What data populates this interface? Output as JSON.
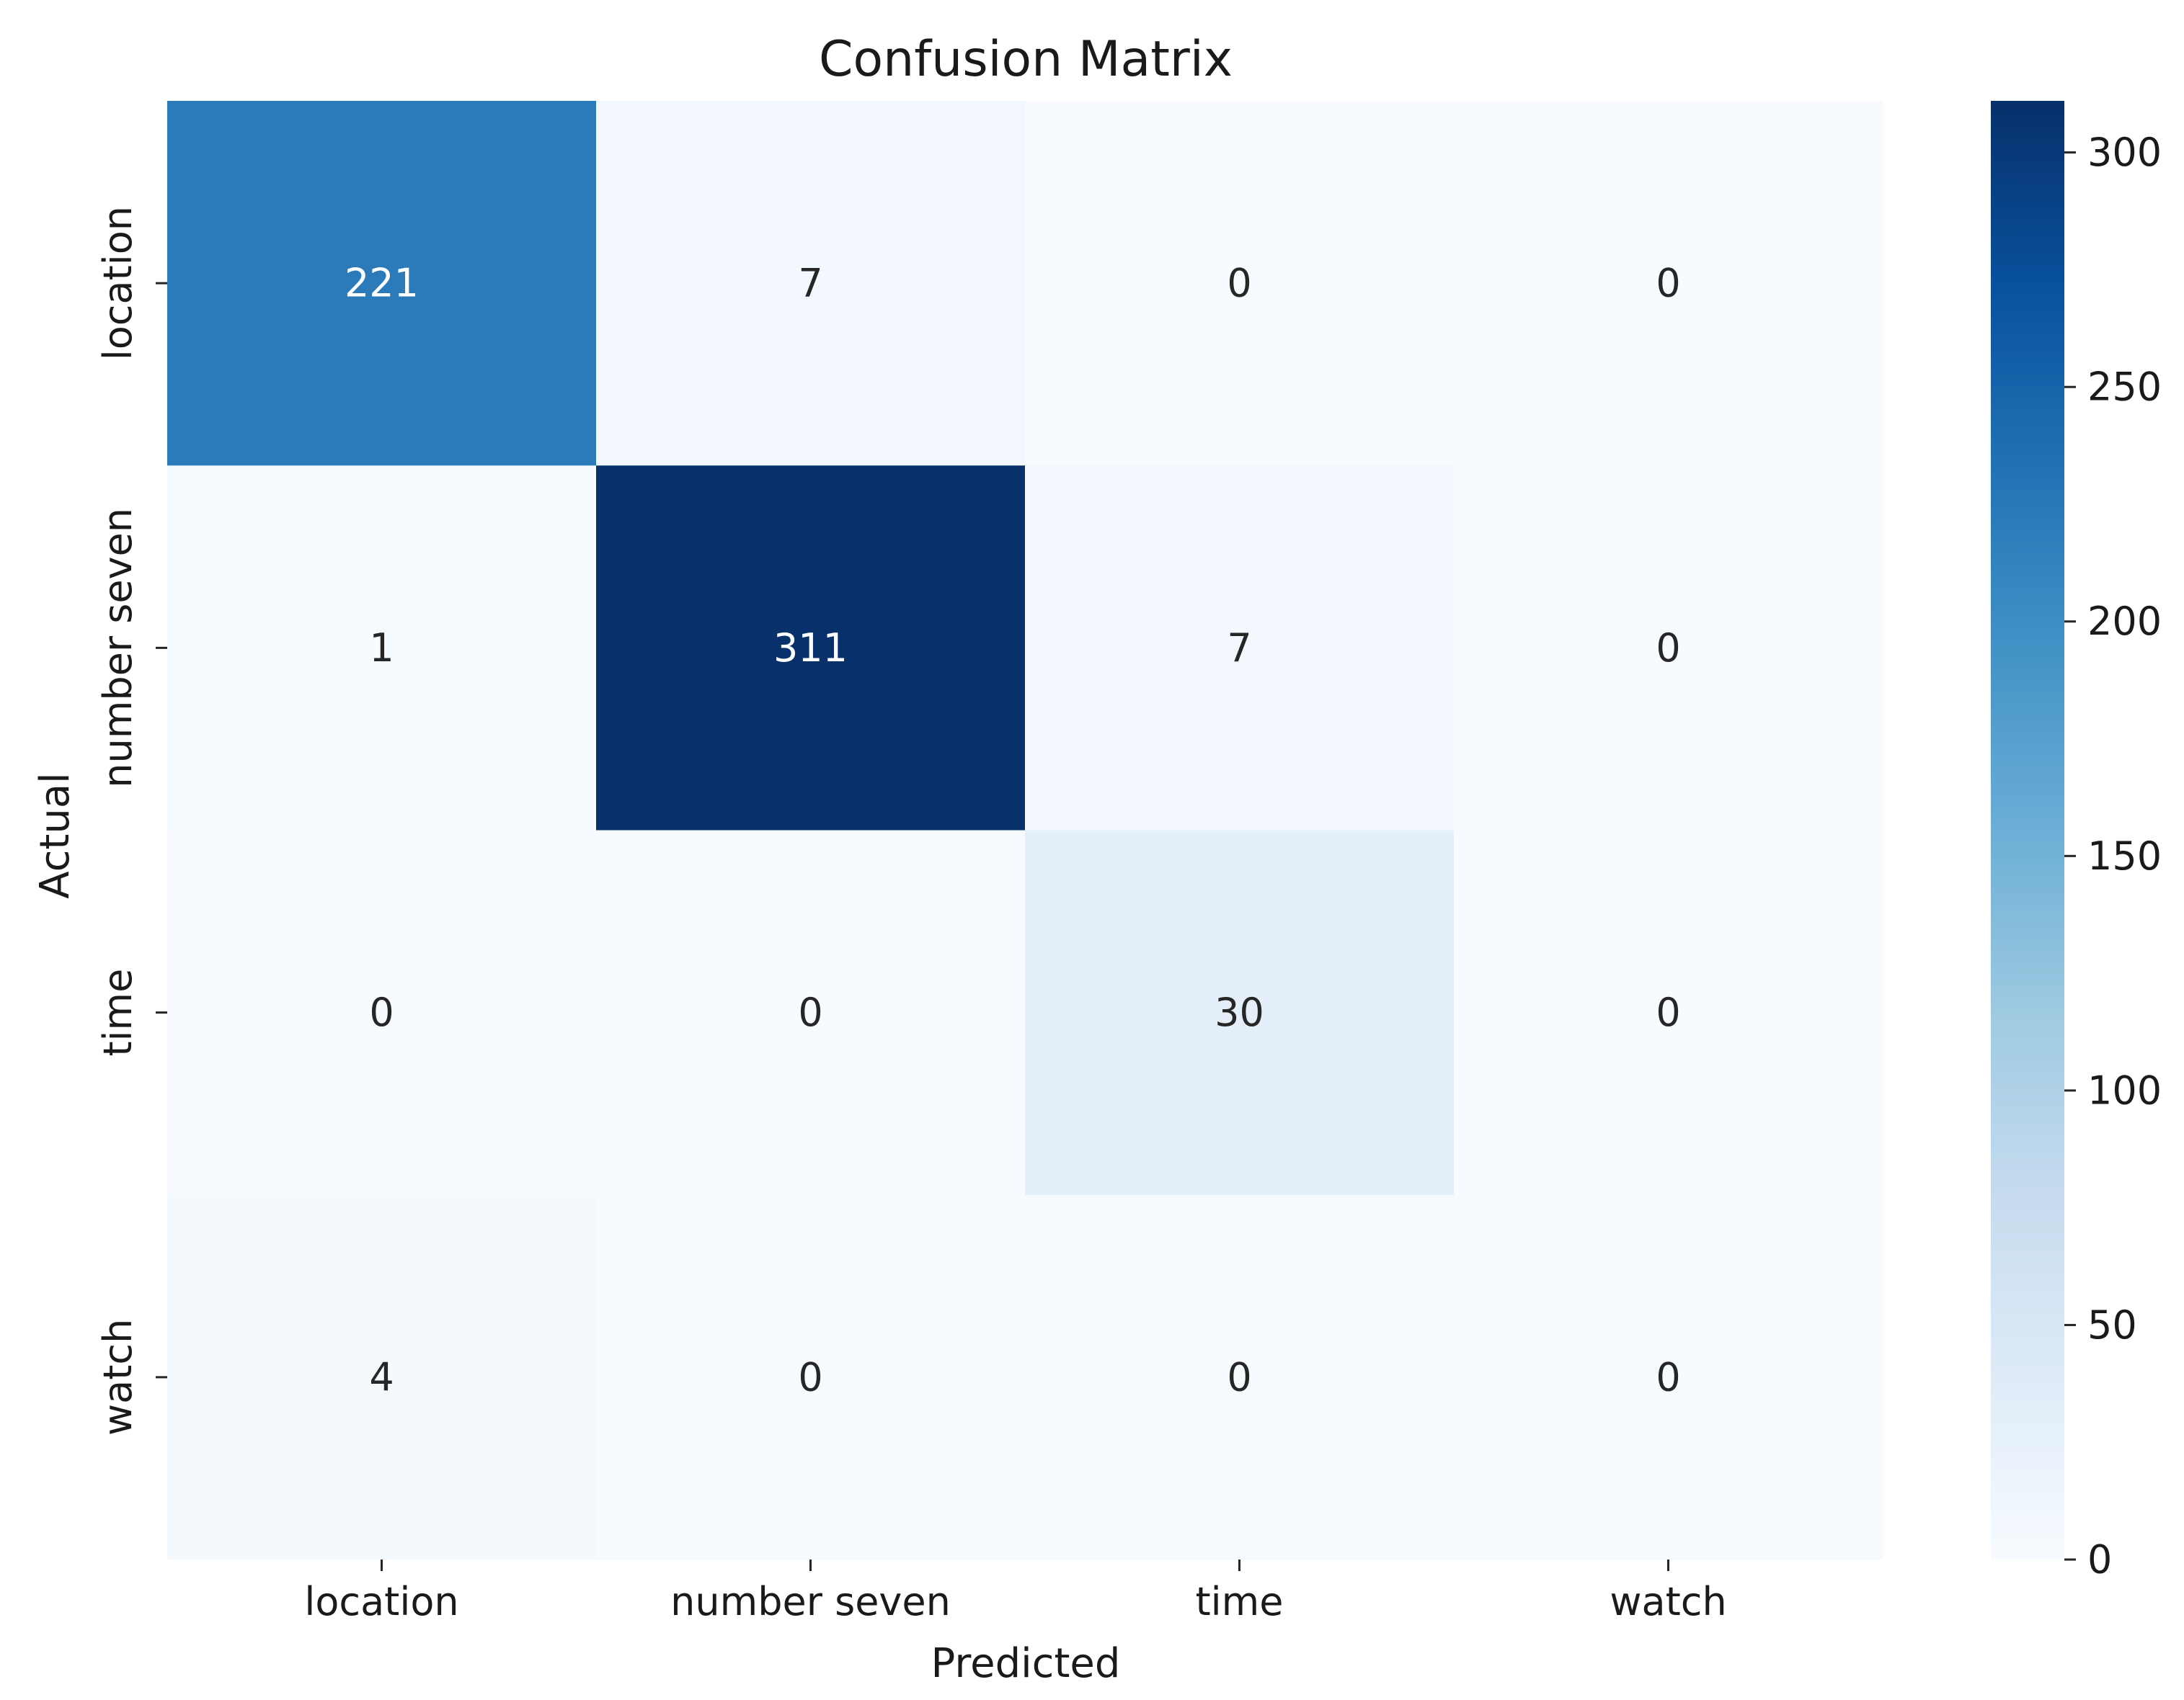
{
  "chart_data": {
    "type": "heatmap",
    "title": "Confusion Matrix",
    "xlabel": "Predicted",
    "ylabel": "Actual",
    "x_categories": [
      "location",
      "number seven",
      "time",
      "watch"
    ],
    "y_categories": [
      "location",
      "number seven",
      "time",
      "watch"
    ],
    "values": [
      [
        221,
        7,
        0,
        0
      ],
      [
        1,
        311,
        7,
        0
      ],
      [
        0,
        0,
        30,
        0
      ],
      [
        4,
        0,
        0,
        0
      ]
    ],
    "colormap": "Blues",
    "color_range": [
      0,
      311
    ],
    "colorbar_ticks": [
      0,
      50,
      100,
      150,
      200,
      250,
      300
    ]
  }
}
